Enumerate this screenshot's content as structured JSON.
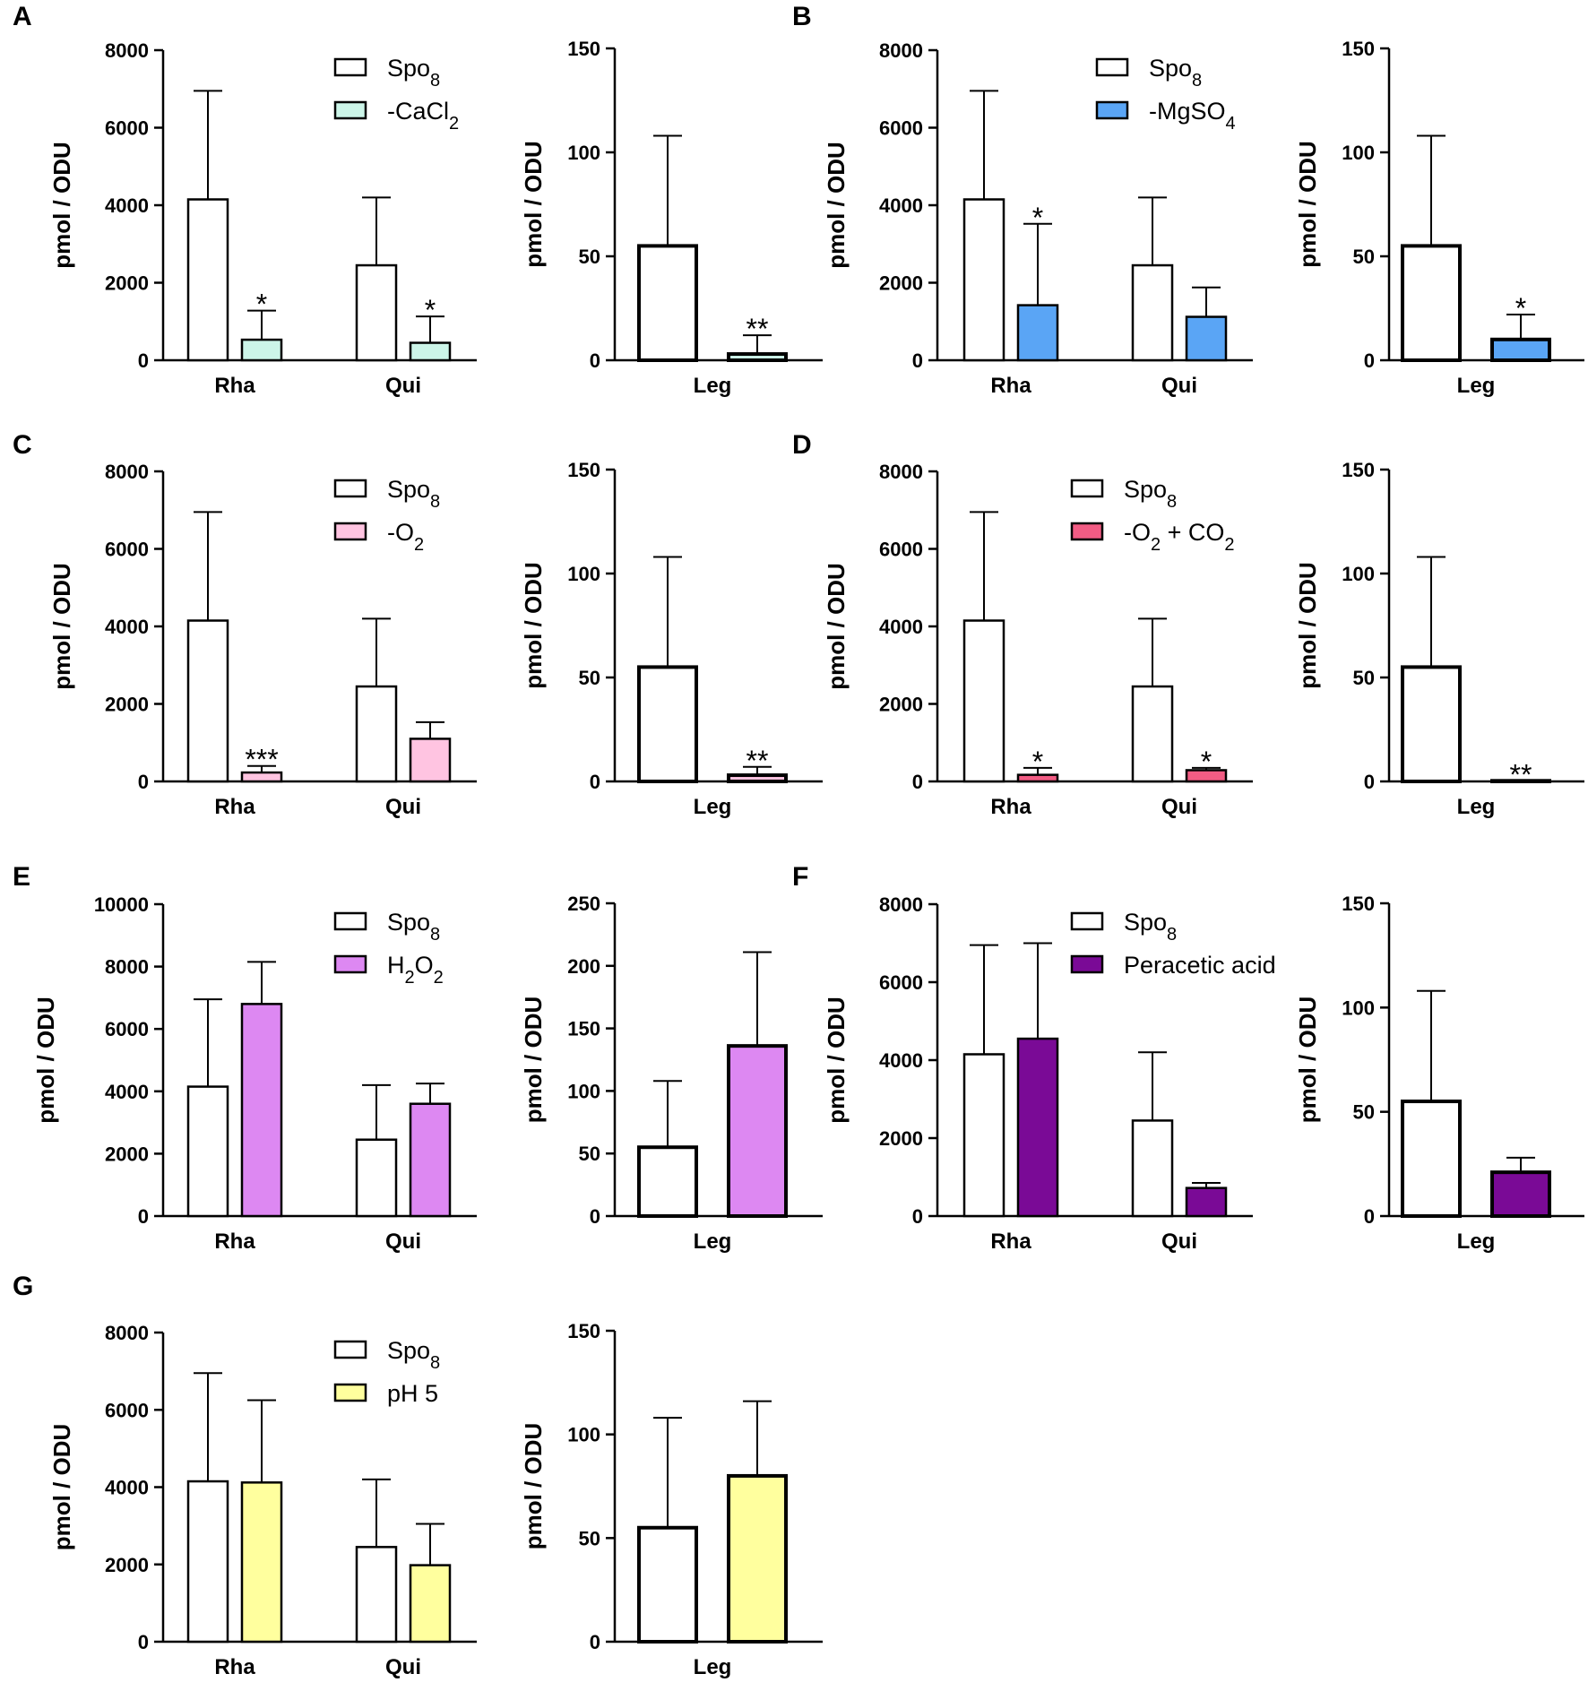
{
  "figure": {
    "y_axis_label": "pmol / ODU"
  },
  "chart_data": [
    {
      "panel": "A",
      "type": "bar",
      "subplot": "left",
      "categories": [
        "Rha",
        "Qui"
      ],
      "ylabel": "pmol / ODU",
      "ylim": [
        0,
        8000
      ],
      "yticks": [
        0,
        2000,
        4000,
        6000,
        8000
      ],
      "ytick_labels": [
        "0",
        "2000",
        "4000",
        "6000",
        "8000"
      ],
      "legend": [
        "Spo8",
        "-CaCl2"
      ],
      "series": [
        {
          "name": "Spo8",
          "color": "#ffffff",
          "values": [
            4150,
            2450
          ],
          "errors": [
            2800,
            1750
          ],
          "sig": [
            "",
            ""
          ]
        },
        {
          "name": "-CaCl2",
          "color": "#ccf5e8",
          "values": [
            530,
            450
          ],
          "errors": [
            750,
            680
          ],
          "sig": [
            "*",
            "*"
          ]
        }
      ]
    },
    {
      "panel": "A",
      "type": "bar",
      "subplot": "right",
      "categories": [
        "Leg"
      ],
      "ylabel": "pmol / ODU",
      "ylim": [
        0,
        150
      ],
      "yticks": [
        0,
        50,
        100,
        150
      ],
      "ytick_labels": [
        "0",
        "50",
        "100",
        "150"
      ],
      "series": [
        {
          "name": "Spo8",
          "color": "#ffffff",
          "values": [
            55
          ],
          "errors": [
            53
          ],
          "sig": [
            ""
          ]
        },
        {
          "name": "-CaCl2",
          "color": "#ccf5e8",
          "values": [
            3
          ],
          "errors": [
            9
          ],
          "sig": [
            "**"
          ]
        }
      ]
    },
    {
      "panel": "B",
      "type": "bar",
      "subplot": "left",
      "categories": [
        "Rha",
        "Qui"
      ],
      "ylabel": "pmol / ODU",
      "ylim": [
        0,
        8000
      ],
      "yticks": [
        0,
        2000,
        4000,
        6000,
        8000
      ],
      "ytick_labels": [
        "0",
        "2000",
        "4000",
        "6000",
        "8000"
      ],
      "legend": [
        "Spo8",
        "-MgSO4"
      ],
      "series": [
        {
          "name": "Spo8",
          "color": "#ffffff",
          "values": [
            4150,
            2450
          ],
          "errors": [
            2800,
            1750
          ],
          "sig": [
            "",
            ""
          ]
        },
        {
          "name": "-MgSO4",
          "color": "#5aa5f5",
          "values": [
            1420,
            1120
          ],
          "errors": [
            2100,
            760
          ],
          "sig": [
            "*",
            ""
          ]
        }
      ]
    },
    {
      "panel": "B",
      "type": "bar",
      "subplot": "right",
      "categories": [
        "Leg"
      ],
      "ylabel": "pmol / ODU",
      "ylim": [
        0,
        150
      ],
      "yticks": [
        0,
        50,
        100,
        150
      ],
      "ytick_labels": [
        "0",
        "50",
        "100",
        "150"
      ],
      "series": [
        {
          "name": "Spo8",
          "color": "#ffffff",
          "values": [
            55
          ],
          "errors": [
            53
          ],
          "sig": [
            ""
          ]
        },
        {
          "name": "-MgSO4",
          "color": "#5aa5f5",
          "values": [
            10
          ],
          "errors": [
            12
          ],
          "sig": [
            "*"
          ]
        }
      ]
    },
    {
      "panel": "C",
      "type": "bar",
      "subplot": "left",
      "categories": [
        "Rha",
        "Qui"
      ],
      "ylabel": "pmol / ODU",
      "ylim": [
        0,
        8000
      ],
      "yticks": [
        0,
        2000,
        4000,
        6000,
        8000
      ],
      "ytick_labels": [
        "0",
        "2000",
        "4000",
        "6000",
        "8000"
      ],
      "legend": [
        "Spo8",
        "-O2"
      ],
      "series": [
        {
          "name": "Spo8",
          "color": "#ffffff",
          "values": [
            4150,
            2450
          ],
          "errors": [
            2800,
            1750
          ],
          "sig": [
            "",
            ""
          ]
        },
        {
          "name": "-O2",
          "color": "#ffc4e1",
          "values": [
            230,
            1100
          ],
          "errors": [
            170,
            430
          ],
          "sig": [
            "***",
            ""
          ]
        }
      ]
    },
    {
      "panel": "C",
      "type": "bar",
      "subplot": "right",
      "categories": [
        "Leg"
      ],
      "ylabel": "pmol / ODU",
      "ylim": [
        0,
        150
      ],
      "yticks": [
        0,
        50,
        100,
        150
      ],
      "ytick_labels": [
        "0",
        "50",
        "100",
        "150"
      ],
      "series": [
        {
          "name": "Spo8",
          "color": "#ffffff",
          "values": [
            55
          ],
          "errors": [
            53
          ],
          "sig": [
            ""
          ]
        },
        {
          "name": "-O2",
          "color": "#ffc4e1",
          "values": [
            3
          ],
          "errors": [
            4
          ],
          "sig": [
            "**"
          ]
        }
      ]
    },
    {
      "panel": "D",
      "type": "bar",
      "subplot": "left",
      "categories": [
        "Rha",
        "Qui"
      ],
      "ylabel": "pmol / ODU",
      "ylim": [
        0,
        8000
      ],
      "yticks": [
        0,
        2000,
        4000,
        6000,
        8000
      ],
      "ytick_labels": [
        "0",
        "2000",
        "4000",
        "6000",
        "8000"
      ],
      "legend": [
        "Spo8",
        "-O2 + CO2"
      ],
      "series": [
        {
          "name": "Spo8",
          "color": "#ffffff",
          "values": [
            4150,
            2450
          ],
          "errors": [
            2800,
            1750
          ],
          "sig": [
            "",
            ""
          ]
        },
        {
          "name": "-O2 + CO2",
          "color": "#f25c84",
          "values": [
            170,
            290
          ],
          "errors": [
            180,
            60
          ],
          "sig": [
            "*",
            "*"
          ]
        }
      ]
    },
    {
      "panel": "D",
      "type": "bar",
      "subplot": "right",
      "categories": [
        "Leg"
      ],
      "ylabel": "pmol / ODU",
      "ylim": [
        0,
        150
      ],
      "yticks": [
        0,
        50,
        100,
        150
      ],
      "ytick_labels": [
        "0",
        "50",
        "100",
        "150"
      ],
      "series": [
        {
          "name": "Spo8",
          "color": "#ffffff",
          "values": [
            55
          ],
          "errors": [
            53
          ],
          "sig": [
            ""
          ]
        },
        {
          "name": "-O2 + CO2",
          "color": "#f25c84",
          "values": [
            0.3
          ],
          "errors": [
            0
          ],
          "sig": [
            "**"
          ]
        }
      ]
    },
    {
      "panel": "E",
      "type": "bar",
      "subplot": "left",
      "categories": [
        "Rha",
        "Qui"
      ],
      "ylabel": "pmol / ODU",
      "ylim": [
        0,
        10000
      ],
      "yticks": [
        0,
        2000,
        4000,
        6000,
        8000,
        10000
      ],
      "ytick_labels": [
        "0",
        "2000",
        "4000",
        "6000",
        "8000",
        "10000"
      ],
      "legend": [
        "Spo8",
        "H2O2"
      ],
      "series": [
        {
          "name": "Spo8",
          "color": "#ffffff",
          "values": [
            4150,
            2450
          ],
          "errors": [
            2800,
            1750
          ],
          "sig": [
            "",
            ""
          ]
        },
        {
          "name": "H2O2",
          "color": "#dd88f2",
          "values": [
            6800,
            3600
          ],
          "errors": [
            1350,
            650
          ],
          "sig": [
            "",
            ""
          ]
        }
      ]
    },
    {
      "panel": "E",
      "type": "bar",
      "subplot": "right",
      "categories": [
        "Leg"
      ],
      "ylabel": "pmol / ODU",
      "ylim": [
        0,
        250
      ],
      "yticks": [
        0,
        50,
        100,
        150,
        200,
        250
      ],
      "ytick_labels": [
        "0",
        "50",
        "100",
        "150",
        "200",
        "250"
      ],
      "series": [
        {
          "name": "Spo8",
          "color": "#ffffff",
          "values": [
            55
          ],
          "errors": [
            53
          ],
          "sig": [
            ""
          ]
        },
        {
          "name": "H2O2",
          "color": "#dd88f2",
          "values": [
            136
          ],
          "errors": [
            75
          ],
          "sig": [
            ""
          ]
        }
      ]
    },
    {
      "panel": "F",
      "type": "bar",
      "subplot": "left",
      "categories": [
        "Rha",
        "Qui"
      ],
      "ylabel": "pmol / ODU",
      "ylim": [
        0,
        8000
      ],
      "yticks": [
        0,
        2000,
        4000,
        6000,
        8000
      ],
      "ytick_labels": [
        "0",
        "2000",
        "4000",
        "6000",
        "8000"
      ],
      "legend": [
        "Spo8",
        "Peracetic acid"
      ],
      "series": [
        {
          "name": "Spo8",
          "color": "#ffffff",
          "values": [
            4150,
            2450
          ],
          "errors": [
            2800,
            1750
          ],
          "sig": [
            "",
            ""
          ]
        },
        {
          "name": "Peracetic acid",
          "color": "#7a0a96",
          "values": [
            4550,
            720
          ],
          "errors": [
            2450,
            130
          ],
          "sig": [
            "",
            ""
          ]
        }
      ]
    },
    {
      "panel": "F",
      "type": "bar",
      "subplot": "right",
      "categories": [
        "Leg"
      ],
      "ylabel": "pmol / ODU",
      "ylim": [
        0,
        150
      ],
      "yticks": [
        0,
        50,
        100,
        150
      ],
      "ytick_labels": [
        "0",
        "50",
        "100",
        "150"
      ],
      "series": [
        {
          "name": "Spo8",
          "color": "#ffffff",
          "values": [
            55
          ],
          "errors": [
            53
          ],
          "sig": [
            ""
          ]
        },
        {
          "name": "Peracetic acid",
          "color": "#7a0a96",
          "values": [
            21
          ],
          "errors": [
            7
          ],
          "sig": [
            ""
          ]
        }
      ]
    },
    {
      "panel": "G",
      "type": "bar",
      "subplot": "left",
      "categories": [
        "Rha",
        "Qui"
      ],
      "ylabel": "pmol / ODU",
      "ylim": [
        0,
        8000
      ],
      "yticks": [
        0,
        2000,
        4000,
        6000,
        8000
      ],
      "ytick_labels": [
        "0",
        "2000",
        "4000",
        "6000",
        "8000"
      ],
      "legend": [
        "Spo8",
        "pH 5"
      ],
      "series": [
        {
          "name": "Spo8",
          "color": "#ffffff",
          "values": [
            4150,
            2450
          ],
          "errors": [
            2800,
            1750
          ],
          "sig": [
            "",
            ""
          ]
        },
        {
          "name": "pH 5",
          "color": "#ffff9e",
          "values": [
            4120,
            1980
          ],
          "errors": [
            2130,
            1070
          ],
          "sig": [
            "",
            ""
          ]
        }
      ]
    },
    {
      "panel": "G",
      "type": "bar",
      "subplot": "right",
      "categories": [
        "Leg"
      ],
      "ylabel": "pmol / ODU",
      "ylim": [
        0,
        150
      ],
      "yticks": [
        0,
        50,
        100,
        150
      ],
      "ytick_labels": [
        "0",
        "50",
        "100",
        "150"
      ],
      "series": [
        {
          "name": "Spo8",
          "color": "#ffffff",
          "values": [
            55
          ],
          "errors": [
            53
          ],
          "sig": [
            ""
          ]
        },
        {
          "name": "pH 5",
          "color": "#ffff9e",
          "values": [
            80
          ],
          "errors": [
            36
          ],
          "sig": [
            ""
          ]
        }
      ]
    }
  ]
}
